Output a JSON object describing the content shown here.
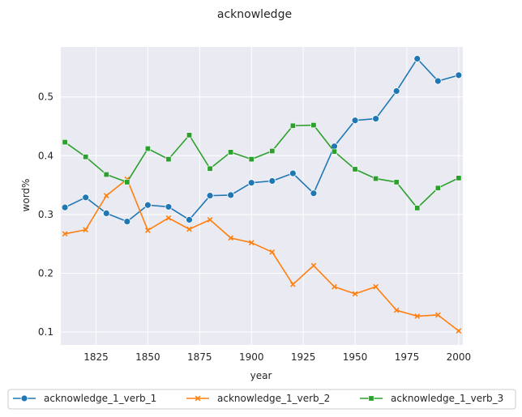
{
  "chart_data": {
    "type": "line",
    "title": "acknowledge",
    "xlabel": "year",
    "ylabel": "word%",
    "xlim": [
      1808,
      2002
    ],
    "ylim": [
      0.078,
      0.585
    ],
    "xticks": [
      1825,
      1850,
      1875,
      1900,
      1925,
      1950,
      1975,
      2000
    ],
    "yticks": [
      0.1,
      0.2,
      0.3,
      0.4,
      0.5
    ],
    "ytick_labels": [
      "0.1",
      "0.2",
      "0.3",
      "0.4",
      "0.5"
    ],
    "grid": true,
    "legend_position": "bottom",
    "background": "#eaeaf2",
    "x": [
      1810,
      1820,
      1830,
      1840,
      1850,
      1860,
      1870,
      1880,
      1890,
      1900,
      1910,
      1920,
      1930,
      1940,
      1950,
      1960,
      1970,
      1980,
      1990,
      2000
    ],
    "series": [
      {
        "name": "acknowledge_1_verb_1",
        "color": "#1f77b4",
        "marker": "circle",
        "values": [
          0.312,
          0.329,
          0.302,
          0.288,
          0.316,
          0.313,
          0.291,
          0.332,
          0.333,
          0.354,
          0.357,
          0.37,
          0.336,
          0.416,
          0.46,
          0.463,
          0.51,
          0.565,
          0.527,
          0.537
        ]
      },
      {
        "name": "acknowledge_1_verb_2",
        "color": "#ff7f0e",
        "marker": "x",
        "values": [
          0.267,
          0.274,
          0.332,
          0.36,
          0.273,
          0.294,
          0.275,
          0.291,
          0.26,
          0.252,
          0.236,
          0.181,
          0.213,
          0.177,
          0.165,
          0.177,
          0.137,
          0.127,
          0.129,
          0.102
        ]
      },
      {
        "name": "acknowledge_1_verb_3",
        "color": "#2ca02c",
        "marker": "square",
        "values": [
          0.423,
          0.398,
          0.368,
          0.355,
          0.412,
          0.394,
          0.435,
          0.378,
          0.406,
          0.394,
          0.408,
          0.451,
          0.452,
          0.407,
          0.377,
          0.361,
          0.355,
          0.311,
          0.345,
          0.362
        ]
      }
    ]
  }
}
